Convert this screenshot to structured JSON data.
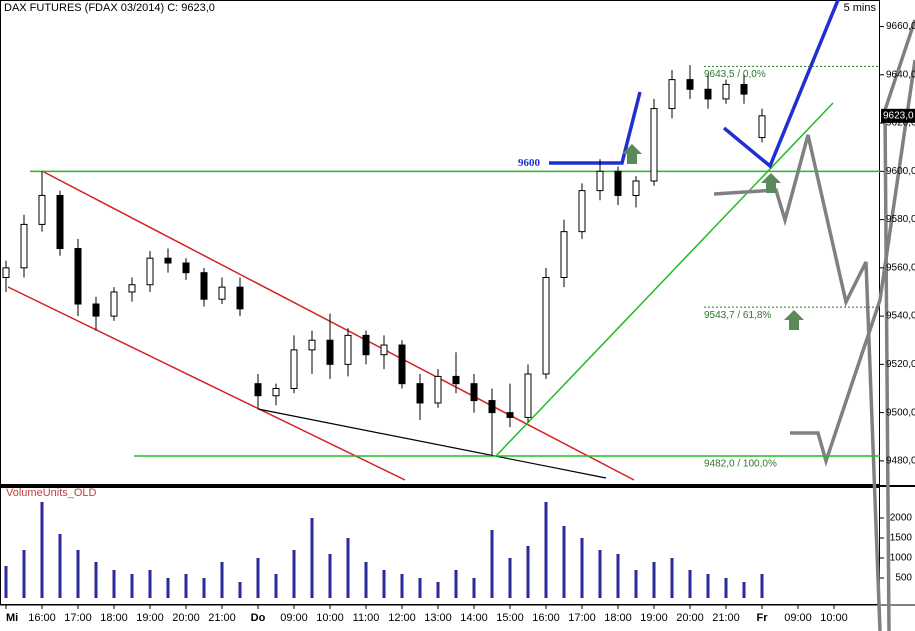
{
  "chart_data": {
    "type": "candlestick",
    "title": "DAX FUTURES (FDAX 03/2014) C: 9623,0",
    "subtitle": "5 mins",
    "categories": [
      "Mi",
      null,
      "16:00",
      null,
      "17:00",
      null,
      "18:00",
      null,
      "19:00",
      null,
      "20:00",
      null,
      "21:00",
      null,
      "Do",
      null,
      "09:00",
      null,
      "10:00",
      null,
      "11:00",
      null,
      "12:00",
      null,
      "13:00",
      null,
      "14:00",
      null,
      "15:00",
      null,
      "16:00",
      null,
      "17:00",
      null,
      "18:00",
      null,
      "19:00",
      null,
      "20:00",
      null,
      "21:00",
      null,
      "Fr",
      null,
      "09:00",
      null,
      "10:00"
    ],
    "open": [
      9556,
      9560,
      9578,
      9590,
      9568,
      9545,
      9540,
      9550,
      9553,
      9564,
      9562,
      9558,
      9547,
      9552,
      9512,
      9507,
      9510,
      9526,
      9530,
      9520,
      9532,
      9524,
      9528,
      9512,
      9504,
      9515,
      9512,
      9505,
      9500,
      9498,
      9516,
      9556,
      9575,
      9592,
      9600,
      9590,
      9596,
      9626,
      9638,
      9634,
      9630,
      9636,
      9614,
      null,
      null,
      null,
      null
    ],
    "high": [
      9563,
      9582,
      9600,
      9592,
      9572,
      9548,
      9552,
      9556,
      9567,
      9568,
      9564,
      9560,
      9556,
      9556,
      9516,
      9512,
      9532,
      9534,
      9541,
      9535,
      9534,
      9532,
      9530,
      9516,
      9518,
      9525,
      9516,
      9510,
      9512,
      9520,
      9560,
      9580,
      9595,
      9605,
      9602,
      9598,
      9630,
      9642,
      9644,
      9640,
      9638,
      9640,
      9626,
      null,
      null,
      null,
      null
    ],
    "low": [
      9550,
      9556,
      9575,
      9565,
      9540,
      9534,
      9538,
      9546,
      9550,
      9558,
      9555,
      9544,
      9545,
      9540,
      9502,
      9503,
      9508,
      9516,
      9514,
      9515,
      9520,
      9518,
      9510,
      9497,
      9502,
      9508,
      9500,
      9482,
      9494,
      9496,
      9514,
      9552,
      9572,
      9588,
      9586,
      9585,
      9594,
      9622,
      9630,
      9626,
      9628,
      9628,
      9612,
      null,
      null,
      null,
      null
    ],
    "close": [
      9560,
      9578,
      9590,
      9568,
      9545,
      9540,
      9550,
      9553,
      9564,
      9562,
      9558,
      9547,
      9552,
      9543,
      9507,
      9510,
      9526,
      9530,
      9520,
      9532,
      9524,
      9528,
      9512,
      9504,
      9515,
      9512,
      9505,
      9500,
      9498,
      9516,
      9556,
      9575,
      9592,
      9600,
      9590,
      9596,
      9626,
      9638,
      9634,
      9630,
      9636,
      9632,
      9623,
      null,
      null,
      null,
      null
    ],
    "ylim": [
      9470,
      9671
    ],
    "yticks": [
      {
        "value": 9480,
        "label": "9480,0"
      },
      {
        "value": 9500,
        "label": "9500,0"
      },
      {
        "value": 9520,
        "label": "9520,0"
      },
      {
        "value": 9540,
        "label": "9540,0"
      },
      {
        "value": 9560,
        "label": "9560,0"
      },
      {
        "value": 9580,
        "label": "9580,0"
      },
      {
        "value": 9600,
        "label": "9600,0"
      },
      {
        "value": 9620,
        "label": "9620,0"
      },
      {
        "value": 9640,
        "label": "9640,0"
      },
      {
        "value": 9660,
        "label": "9660,0"
      }
    ],
    "last_price": {
      "value": 9623,
      "label": "9623,0"
    },
    "levels": [
      {
        "value": 9600,
        "label": "9600"
      },
      {
        "value": 9643.5,
        "label": "9643,5 / 0,0%"
      },
      {
        "value": 9543.7,
        "label": "9543,7 / 61,8%"
      },
      {
        "value": 9482,
        "label": "9482,0 / 100,0%"
      }
    ],
    "volume": {
      "name": "VolumeUnits_OLD",
      "color": "#2b2b9a",
      "values": [
        800,
        1200,
        2400,
        1600,
        1200,
        900,
        700,
        600,
        700,
        500,
        600,
        500,
        900,
        400,
        1000,
        600,
        1200,
        2000,
        1100,
        1500,
        900,
        700,
        600,
        500,
        400,
        700,
        500,
        1700,
        1000,
        1300,
        2400,
        1800,
        1500,
        1200,
        1100,
        700,
        900,
        1000,
        700,
        600,
        500,
        400,
        600,
        null,
        null,
        null,
        null
      ],
      "ylim": [
        0,
        2775
      ],
      "yticks": [
        500,
        1000,
        1500,
        2000
      ]
    }
  }
}
